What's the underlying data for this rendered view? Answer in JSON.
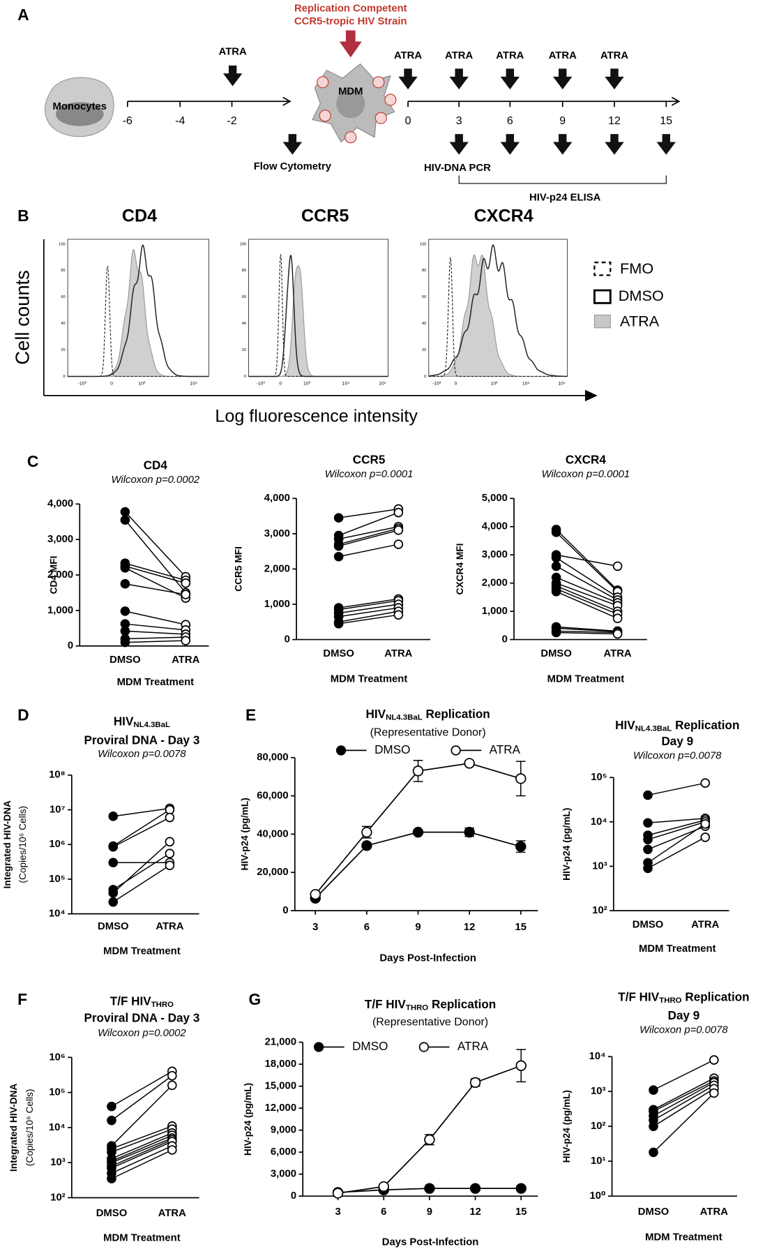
{
  "panel_a": {
    "label": "A",
    "strain": [
      "Replication Competent",
      "CCR5-tropic HIV Strain"
    ],
    "monocytes": "Monocytes",
    "mdm": "MDM",
    "atra": [
      "ATRA",
      "ATRA",
      "ATRA",
      "ATRA",
      "ATRA",
      "ATRA"
    ],
    "days_before": [
      "-6",
      "-4",
      "-2"
    ],
    "days_after": [
      "0",
      "3",
      "6",
      "9",
      "12",
      "15"
    ],
    "flow": "Flow Cytometry",
    "pcr": "HIV-DNA PCR",
    "elisa": "HIV-p24 ELISA"
  },
  "panel_b": {
    "label": "B",
    "ylabel": "Cell counts",
    "xlabel": "Log fluorescence intensity",
    "legend": [
      "FMO",
      "DMSO",
      "ATRA"
    ],
    "histograms": [
      {
        "title": "CD4",
        "yticks": [
          "0",
          "20",
          "40",
          "60",
          "80",
          "100"
        ],
        "xticks": [
          "-10³",
          "0",
          "10³",
          "10⁴"
        ]
      },
      {
        "title": "CCR5",
        "yticks": [
          "0",
          "20",
          "40",
          "60",
          "80",
          "100"
        ],
        "xticks": [
          "-10³",
          "0",
          "10³",
          "10⁴",
          "10⁵"
        ]
      },
      {
        "title": "CXCR4",
        "yticks": [
          "0",
          "20",
          "40",
          "60",
          "80",
          "100"
        ],
        "xticks": [
          "-10³",
          "0",
          "10³",
          "10⁴",
          "10⁵"
        ]
      }
    ]
  },
  "panel_labels": [
    "C",
    "D",
    "E",
    "F",
    "G"
  ],
  "chart_data": [
    {
      "type": "paired",
      "title_lines": [
        [
          "CD4"
        ]
      ],
      "stat": "Wilcoxon p=0.0002",
      "ylabel": [
        "CD4 MFI"
      ],
      "xlabel": "MDM Treatment",
      "categories": [
        "DMSO",
        "ATRA"
      ],
      "marker_fills": [
        "#000000",
        "#ffffff"
      ],
      "color": "#000000",
      "log": false,
      "ylim": [
        0,
        4000
      ],
      "yticks": [
        0,
        {
          "value": 1000,
          "label": "1,000"
        },
        {
          "value": 2000,
          "label": "2,000"
        },
        {
          "value": 3000,
          "label": "3,000"
        },
        {
          "value": 4000,
          "label": "4,000"
        }
      ],
      "series": [
        {
          "values": [
            3780,
            1950
          ]
        },
        {
          "values": [
            3550,
            1500
          ]
        },
        {
          "values": [
            2330,
            1850
          ]
        },
        {
          "values": [
            2250,
            1770
          ]
        },
        {
          "values": [
            2200,
            1350
          ]
        },
        {
          "values": [
            1750,
            1450
          ]
        },
        {
          "values": [
            980,
            600
          ]
        },
        {
          "values": [
            620,
            450
          ]
        },
        {
          "values": [
            420,
            330
          ]
        },
        {
          "values": [
            200,
            250
          ]
        },
        {
          "values": [
            100,
            150
          ]
        }
      ]
    },
    {
      "type": "paired",
      "title_lines": [
        [
          "CCR5"
        ]
      ],
      "stat": "Wilcoxon p=0.0001",
      "ylabel": [
        "CCR5 MFI"
      ],
      "xlabel": "MDM Treatment",
      "categories": [
        "DMSO",
        "ATRA"
      ],
      "marker_fills": [
        "#000000",
        "#ffffff"
      ],
      "color": "#000000",
      "log": false,
      "ylim": [
        0,
        4000
      ],
      "yticks": [
        0,
        {
          "value": 1000,
          "label": "1,000"
        },
        {
          "value": 2000,
          "label": "2,000"
        },
        {
          "value": 3000,
          "label": "3,000"
        },
        {
          "value": 4000,
          "label": "4,000"
        }
      ],
      "series": [
        {
          "values": [
            3450,
            3700
          ]
        },
        {
          "values": [
            2950,
            3600
          ]
        },
        {
          "values": [
            2850,
            3200
          ]
        },
        {
          "values": [
            2700,
            3150
          ]
        },
        {
          "values": [
            2650,
            3100
          ]
        },
        {
          "values": [
            2350,
            2700
          ]
        },
        {
          "values": [
            900,
            1150
          ]
        },
        {
          "values": [
            850,
            1100
          ]
        },
        {
          "values": [
            750,
            1000
          ]
        },
        {
          "values": [
            650,
            900
          ]
        },
        {
          "values": [
            500,
            800
          ]
        },
        {
          "values": [
            450,
            700
          ]
        }
      ]
    },
    {
      "type": "paired",
      "title_lines": [
        [
          "CXCR4"
        ]
      ],
      "stat": "Wilcoxon p=0.0001",
      "ylabel": [
        "CXCR4 MFI"
      ],
      "xlabel": "MDM Treatment",
      "categories": [
        "DMSO",
        "ATRA"
      ],
      "marker_fills": [
        "#000000",
        "#ffffff"
      ],
      "color": "#000000",
      "log": false,
      "ylim": [
        0,
        5000
      ],
      "yticks": [
        0,
        {
          "value": 1000,
          "label": "1,000"
        },
        {
          "value": 2000,
          "label": "2,000"
        },
        {
          "value": 3000,
          "label": "3,000"
        },
        {
          "value": 4000,
          "label": "4,000"
        },
        {
          "value": 5000,
          "label": "5,000"
        }
      ],
      "series": [
        {
          "values": [
            3900,
            1750
          ]
        },
        {
          "values": [
            3800,
            1700
          ]
        },
        {
          "values": [
            3000,
            2600
          ]
        },
        {
          "values": [
            2900,
            1500
          ]
        },
        {
          "values": [
            2600,
            1400
          ]
        },
        {
          "values": [
            2200,
            1300
          ]
        },
        {
          "values": [
            2000,
            1200
          ]
        },
        {
          "values": [
            1900,
            1000
          ]
        },
        {
          "values": [
            1800,
            900
          ]
        },
        {
          "values": [
            1700,
            750
          ]
        },
        {
          "values": [
            450,
            300
          ]
        },
        {
          "values": [
            400,
            280
          ]
        },
        {
          "values": [
            300,
            250
          ]
        },
        {
          "values": [
            250,
            200
          ]
        }
      ]
    },
    {
      "type": "paired",
      "title_lines": [
        [
          "HIV",
          "NL4.3BaL"
        ],
        [
          "Proviral DNA - Day 3"
        ]
      ],
      "stat": "Wilcoxon p=0.0078",
      "ylabel": [
        "Integrated HIV-DNA",
        "(Copies/10⁶ Cells)"
      ],
      "xlabel": "MDM Treatment",
      "categories": [
        "DMSO",
        "ATRA"
      ],
      "marker_fills": [
        "#000000",
        "#ffffff"
      ],
      "color": "#000000",
      "log": true,
      "ylim": [
        10000,
        100000000
      ],
      "yticks": [
        {
          "value": 10000,
          "label": "10⁴"
        },
        {
          "value": 100000,
          "label": "10⁵"
        },
        {
          "value": 1000000,
          "label": "10⁶"
        },
        {
          "value": 10000000,
          "label": "10⁷"
        },
        {
          "value": 100000000,
          "label": "10⁸"
        }
      ],
      "series": [
        {
          "values": [
            6500000,
            11000000
          ]
        },
        {
          "values": [
            900000,
            10000000
          ]
        },
        {
          "values": [
            850000,
            6000000
          ]
        },
        {
          "values": [
            300000,
            300000
          ]
        },
        {
          "values": [
            50000,
            550000
          ]
        },
        {
          "values": [
            40000,
            1200000
          ]
        },
        {
          "values": [
            22000,
            250000
          ]
        }
      ]
    },
    {
      "type": "line",
      "title_lines": [
        [
          "HIV",
          "NL4.3BaL",
          " Replication"
        ]
      ],
      "subtitle": "(Representative Donor)",
      "ylabel": [
        "HIV-p24 (pg/mL)"
      ],
      "xlabel": "Days Post-Infection",
      "color": "#000000",
      "log": false,
      "x": [
        3,
        6,
        9,
        12,
        15
      ],
      "xlim": [
        1.8,
        16
      ],
      "xticks": [
        3,
        6,
        9,
        12,
        15
      ],
      "ylim": [
        0,
        80000
      ],
      "yticks": [
        0,
        {
          "value": 20000,
          "label": "20,000"
        },
        {
          "value": 40000,
          "label": "40,000"
        },
        {
          "value": 60000,
          "label": "60,000"
        },
        {
          "value": 80000,
          "label": "80,000"
        }
      ],
      "series": [
        {
          "name": "DMSO",
          "fill": "#000000",
          "values": [
            6500,
            34000,
            41000,
            41000,
            33500
          ],
          "errors": [
            null,
            null,
            null,
            2200,
            3000
          ]
        },
        {
          "name": "ATRA",
          "fill": "#ffffff",
          "values": [
            8500,
            41000,
            73000,
            77000,
            69000
          ],
          "errors": [
            null,
            3000,
            5500,
            1200,
            9000
          ]
        }
      ]
    },
    {
      "type": "paired",
      "title_lines": [
        [
          "HIV",
          "NL4.3BaL",
          " Replication"
        ],
        [
          "Day 9"
        ]
      ],
      "stat": "Wilcoxon p=0.0078",
      "ylabel": [
        "HIV-p24 (pg/mL)"
      ],
      "xlabel": "MDM Treatment",
      "categories": [
        "DMSO",
        "ATRA"
      ],
      "marker_fills": [
        "#000000",
        "#ffffff"
      ],
      "color": "#000000",
      "log": true,
      "ylim": [
        100,
        100000
      ],
      "yticks": [
        {
          "value": 100,
          "label": "10²"
        },
        {
          "value": 1000,
          "label": "10³"
        },
        {
          "value": 10000,
          "label": "10⁴"
        },
        {
          "value": 100000,
          "label": "10⁵"
        }
      ],
      "series": [
        {
          "values": [
            40000,
            75000
          ]
        },
        {
          "values": [
            9500,
            12000
          ]
        },
        {
          "values": [
            5000,
            11000
          ]
        },
        {
          "values": [
            4000,
            10000
          ]
        },
        {
          "values": [
            2400,
            8000
          ]
        },
        {
          "values": [
            1200,
            9000
          ]
        },
        {
          "values": [
            900,
            4500
          ]
        }
      ]
    },
    {
      "type": "paired",
      "title_lines": [
        [
          "T/F HIV",
          "THRO"
        ],
        [
          "Proviral DNA - Day 3"
        ]
      ],
      "stat": "Wilcoxon p=0.0002",
      "ylabel": [
        "Integrated HIV-DNA",
        "(Copies/10⁶ Cells)"
      ],
      "xlabel": "MDM Treatment",
      "categories": [
        "DMSO",
        "ATRA"
      ],
      "marker_fills": [
        "#000000",
        "#ffffff"
      ],
      "color": "#000000",
      "log": true,
      "ylim": [
        100,
        1000000
      ],
      "yticks": [
        {
          "value": 100,
          "label": "10²"
        },
        {
          "value": 1000,
          "label": "10³"
        },
        {
          "value": 10000,
          "label": "10⁴"
        },
        {
          "value": 100000,
          "label": "10⁵"
        },
        {
          "value": 1000000,
          "label": "10⁶"
        }
      ],
      "series": [
        {
          "values": [
            40000,
            400000
          ]
        },
        {
          "values": [
            16000,
            300000
          ]
        },
        {
          "values": [
            3000,
            160000
          ]
        },
        {
          "values": [
            2500,
            11000
          ]
        },
        {
          "values": [
            2000,
            9000
          ]
        },
        {
          "values": [
            1300,
            7000
          ]
        },
        {
          "values": [
            1100,
            6000
          ]
        },
        {
          "values": [
            1000,
            5000
          ]
        },
        {
          "values": [
            800,
            4500
          ]
        },
        {
          "values": [
            700,
            4000
          ]
        },
        {
          "values": [
            500,
            3000
          ]
        },
        {
          "values": [
            350,
            2300
          ]
        }
      ]
    },
    {
      "type": "line",
      "title_lines": [
        [
          "T/F HIV",
          "THRO",
          " Replication"
        ]
      ],
      "subtitle": "(Representative Donor)",
      "ylabel": [
        "HIV-p24 (pg/mL)"
      ],
      "xlabel": "Days Post-Infection",
      "color": "#000000",
      "log": false,
      "x": [
        3,
        6,
        9,
        12,
        15
      ],
      "xlim": [
        0.7,
        16.1
      ],
      "xticks": [
        3,
        6,
        9,
        12,
        15
      ],
      "ylim": [
        0,
        21000
      ],
      "yticks": [
        0,
        {
          "value": 3000,
          "label": "3,000"
        },
        {
          "value": 6000,
          "label": "6,000"
        },
        {
          "value": 9000,
          "label": "9,000"
        },
        {
          "value": 12000,
          "label": "12,000"
        },
        {
          "value": 15000,
          "label": "15,000"
        },
        {
          "value": 18000,
          "label": "18,000"
        },
        {
          "value": 21000,
          "label": "21,000"
        }
      ],
      "series": [
        {
          "name": "DMSO",
          "fill": "#000000",
          "values": [
            500,
            850,
            1050,
            1050,
            1050
          ],
          "errors": [
            null,
            null,
            null,
            null,
            null
          ]
        },
        {
          "name": "ATRA",
          "fill": "#ffffff",
          "values": [
            400,
            1300,
            7700,
            15500,
            17800
          ],
          "errors": [
            null,
            null,
            700,
            500,
            2200
          ]
        }
      ]
    },
    {
      "type": "paired",
      "title_lines": [
        [
          "T/F HIV",
          "THRO",
          " Replication"
        ],
        [
          "Day 9"
        ]
      ],
      "stat": "Wilcoxon p=0.0078",
      "ylabel": [
        "HIV-p24 (pg/mL)"
      ],
      "xlabel": "MDM Treatment",
      "categories": [
        "DMSO",
        "ATRA"
      ],
      "marker_fills": [
        "#000000",
        "#ffffff"
      ],
      "color": "#000000",
      "log": true,
      "ylim": [
        1,
        10000
      ],
      "yticks": [
        {
          "value": 1,
          "label": "10⁰"
        },
        {
          "value": 10,
          "label": "10¹"
        },
        {
          "value": 100,
          "label": "10²"
        },
        {
          "value": 1000,
          "label": "10³"
        },
        {
          "value": 10000,
          "label": "10⁴"
        }
      ],
      "series": [
        {
          "values": [
            1100,
            8000
          ]
        },
        {
          "values": [
            300,
            2400
          ]
        },
        {
          "values": [
            270,
            2000
          ]
        },
        {
          "values": [
            200,
            1800
          ]
        },
        {
          "values": [
            150,
            1500
          ]
        },
        {
          "values": [
            100,
            1200
          ]
        },
        {
          "values": [
            18,
            900
          ]
        }
      ]
    }
  ]
}
